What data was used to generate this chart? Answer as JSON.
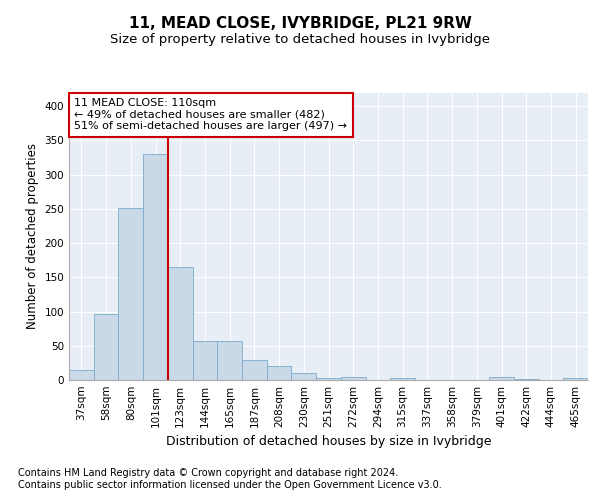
{
  "title": "11, MEAD CLOSE, IVYBRIDGE, PL21 9RW",
  "subtitle": "Size of property relative to detached houses in Ivybridge",
  "xlabel": "Distribution of detached houses by size in Ivybridge",
  "ylabel": "Number of detached properties",
  "footnote1": "Contains HM Land Registry data © Crown copyright and database right 2024.",
  "footnote2": "Contains public sector information licensed under the Open Government Licence v3.0.",
  "categories": [
    "37sqm",
    "58sqm",
    "80sqm",
    "101sqm",
    "123sqm",
    "144sqm",
    "165sqm",
    "187sqm",
    "208sqm",
    "230sqm",
    "251sqm",
    "272sqm",
    "294sqm",
    "315sqm",
    "337sqm",
    "358sqm",
    "379sqm",
    "401sqm",
    "422sqm",
    "444sqm",
    "465sqm"
  ],
  "values": [
    15,
    97,
    251,
    330,
    165,
    57,
    57,
    29,
    20,
    10,
    3,
    5,
    0,
    3,
    0,
    0,
    0,
    5,
    1,
    0,
    3
  ],
  "bar_color": "#c9d9e8",
  "bar_edge_color": "#7aaac8",
  "vline_color": "#cc0000",
  "vline_pos": 3.5,
  "annotation_text": "11 MEAD CLOSE: 110sqm\n← 49% of detached houses are smaller (482)\n51% of semi-detached houses are larger (497) →",
  "annotation_box_facecolor": "#ffffff",
  "annotation_box_edgecolor": "#cc0000",
  "ylim": [
    0,
    420
  ],
  "yticks": [
    0,
    50,
    100,
    150,
    200,
    250,
    300,
    350,
    400
  ],
  "plot_bg": "#e8eef5",
  "grid_color": "#ffffff",
  "title_fontsize": 11,
  "subtitle_fontsize": 9.5,
  "ylabel_fontsize": 8.5,
  "xlabel_fontsize": 9,
  "tick_fontsize": 7.5,
  "annot_fontsize": 8,
  "footnote_fontsize": 7
}
